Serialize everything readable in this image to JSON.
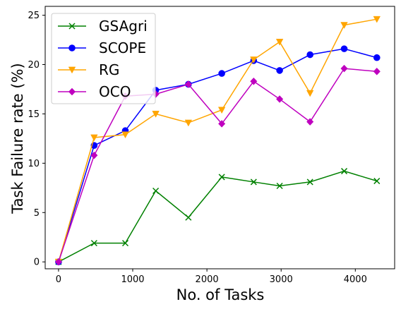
{
  "chart_data": {
    "type": "line",
    "title": "",
    "xlabel": "No. of Tasks",
    "ylabel": "Task Failure rate (%)",
    "xlim": [
      -180,
      4530
    ],
    "ylim": [
      -0.7,
      25.9
    ],
    "xticks": [
      0,
      1000,
      2000,
      3000,
      4000
    ],
    "yticks": [
      0,
      5,
      10,
      15,
      20,
      25
    ],
    "grid": false,
    "legend_position": "top-left",
    "x": [
      0,
      480,
      900,
      1310,
      1750,
      2200,
      2630,
      2980,
      3390,
      3850,
      4290
    ],
    "series": [
      {
        "name": "GSAgri",
        "color": "#008000",
        "marker": "x",
        "values": [
          0,
          1.9,
          1.9,
          7.2,
          4.5,
          8.6,
          8.1,
          7.7,
          8.1,
          9.2,
          8.2
        ]
      },
      {
        "name": "SCOPE",
        "color": "#0000ff",
        "marker": "circle",
        "values": [
          0,
          11.8,
          13.3,
          17.4,
          18.0,
          19.1,
          20.4,
          19.4,
          21.0,
          21.6,
          20.7
        ]
      },
      {
        "name": "RG",
        "color": "#ffa500",
        "marker": "triangle-down",
        "values": [
          0,
          12.6,
          12.9,
          15.0,
          14.1,
          15.4,
          20.5,
          22.3,
          17.1,
          24.0,
          24.6
        ]
      },
      {
        "name": "OCO",
        "color": "#bf00bf",
        "marker": "diamond",
        "values": [
          0,
          10.8,
          16.8,
          17.0,
          18.0,
          14.0,
          18.3,
          16.5,
          14.2,
          19.6,
          19.3
        ]
      }
    ]
  }
}
